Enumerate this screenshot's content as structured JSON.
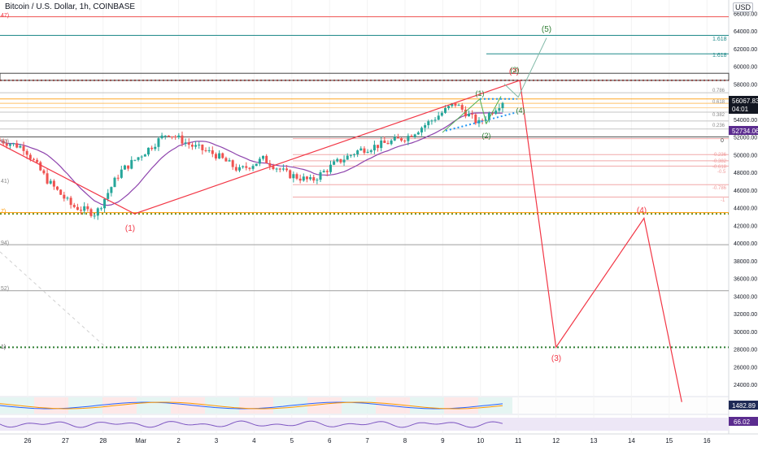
{
  "header": {
    "symbol": "Bitcoin / U.S. Dollar, 1h, COINBASE",
    "currency": "USD"
  },
  "price_badges": {
    "last_price": "56067.83",
    "countdown": "04:01",
    "ma_price": "52734.06",
    "osc_value": "1482.89",
    "rsi_value": "66.02"
  },
  "colors": {
    "bull": "#26a69a",
    "bear": "#ef5350",
    "wave": "#f23645",
    "ma": "#8e44ad",
    "fib_teal": "#1f8a8a",
    "orange": "#ff9800",
    "green_wave": "#2e7d32",
    "purple_badge": "#5b2c8f"
  },
  "wave_labels": {
    "w1": "(1)",
    "w2": "(2)",
    "w3": "(3)",
    "w4": "(4)",
    "w5": "(5)",
    "sub1": "(1)",
    "sub2": "(2)",
    "sub3": "(3)",
    "sub4": "(4)"
  },
  "fib_labels": {
    "f1618a": "1.618",
    "f1618b": "1.618",
    "f0786": "0.786",
    "f0618": "0.618",
    "f0382": "0.382",
    "f0236": "0.236",
    "f0": "0",
    "f0236n": "-0.236",
    "f0382n": "-0.382",
    "f0618n": "-0.618",
    "f05n": "-0.5",
    "f0786n": "-0.786",
    "f1n": "-1",
    "lk47": "47)",
    "lk53": "53)",
    "lk41": "41)",
    "lk7": "7)",
    "lk94": "94)",
    "lk52": "52)",
    "lk1": "1)"
  },
  "chart_data": {
    "type": "line",
    "title": "Bitcoin / U.S. Dollar, 1h, COINBASE",
    "y_axis": {
      "ticks": [
        24000,
        26000,
        28000,
        30000,
        32000,
        34000,
        36000,
        38000,
        40000,
        42000,
        44000,
        46000,
        48000,
        50000,
        52000,
        54000,
        56000,
        58000,
        60000,
        62000,
        64000,
        66000
      ],
      "tick_labels": [
        "24000.00",
        "26000.00",
        "28000.00",
        "30000.00",
        "32000.00",
        "34000.00",
        "36000.00",
        "38000.00",
        "40000.00",
        "42000.00",
        "44000.00",
        "46000.00",
        "48000.00",
        "50000.00",
        "52000.00",
        "54000.00",
        "56000.00",
        "58000.00",
        "60000.00",
        "62000.00",
        "64000.00",
        "66000.00"
      ],
      "range": [
        22000,
        66800
      ]
    },
    "x_axis": {
      "labels": [
        "26",
        "27",
        "28",
        "Mar",
        "2",
        "3",
        "4",
        "5",
        "6",
        "7",
        "8",
        "9",
        "10",
        "11",
        "12",
        "13",
        "14",
        "15",
        "16"
      ]
    },
    "anchor_price": [
      51600,
      50800,
      47000,
      44200,
      43300,
      48000,
      50200,
      52500,
      51000,
      50000,
      48200,
      49500,
      47800,
      47000,
      49000,
      50500,
      51200,
      52000,
      53800,
      55800,
      53500,
      56067
    ],
    "wave_projection": [
      {
        "date": "Feb 28 20:00",
        "price": 43300,
        "label": "(1)"
      },
      {
        "date": "Mar 11 01:00",
        "price": 58400,
        "label": "(2)"
      },
      {
        "date": "Mar 12 00:00",
        "price": 28200,
        "label": "(3)"
      },
      {
        "date": "Mar 14 08:00",
        "price": 42800,
        "label": "(4)"
      },
      {
        "date": "Mar 15 08:00",
        "price": 22000,
        "label": ""
      }
    ],
    "green_projection": [
      {
        "date": "Mar 11 00:00",
        "price": 56500,
        "label": "(4)"
      },
      {
        "date": "Mar 11 18:00",
        "price": 63200,
        "label": "(5)"
      }
    ],
    "horizontal_levels": [
      65600,
      63500,
      61400,
      58400,
      52000,
      43300,
      39800,
      34600,
      28200
    ],
    "oscillator": {
      "value": 1482.89
    },
    "rsi": {
      "value": 66.02
    }
  }
}
